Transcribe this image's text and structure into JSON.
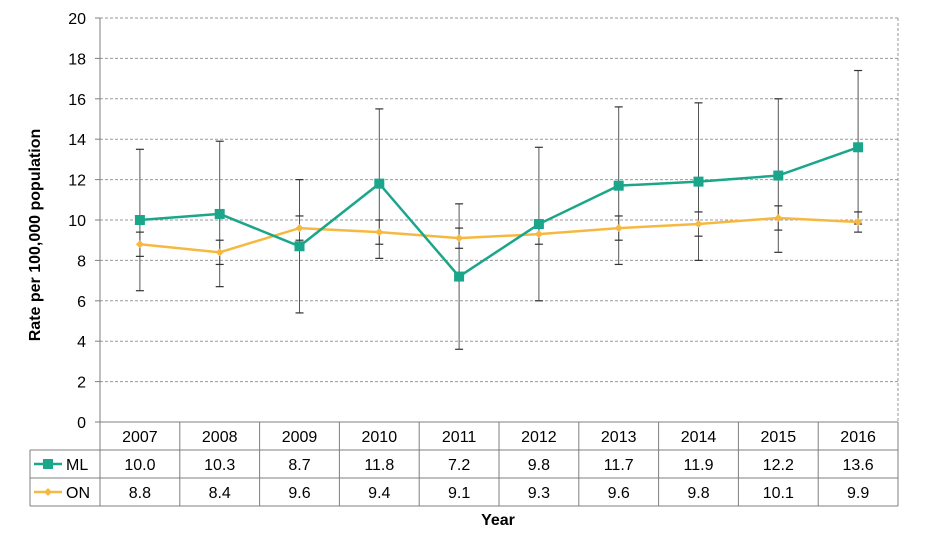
{
  "chart_data": {
    "type": "line",
    "xlabel": "Year",
    "ylabel": "Rate per 100,000 population",
    "ylim": [
      0,
      20
    ],
    "yticks": [
      "0",
      "2",
      "4",
      "6",
      "8",
      "10",
      "12",
      "14",
      "16",
      "18",
      "20"
    ],
    "grid": true,
    "legend": "data-table",
    "categories": [
      "2007",
      "2008",
      "2009",
      "2010",
      "2011",
      "2012",
      "2013",
      "2014",
      "2015",
      "2016"
    ],
    "series": [
      {
        "name": "ML",
        "color": "#1aa68a",
        "marker": "square",
        "values": [
          10.0,
          10.3,
          8.7,
          11.8,
          7.2,
          9.8,
          11.7,
          11.9,
          12.2,
          13.6
        ],
        "labels": [
          "10.0",
          "10.3",
          "8.7",
          "11.8",
          "7.2",
          "9.8",
          "11.7",
          "11.9",
          "12.2",
          "13.6"
        ],
        "ci_low": [
          6.5,
          6.7,
          5.4,
          8.1,
          3.6,
          6.0,
          7.8,
          8.0,
          8.4,
          9.8
        ],
        "ci_high": [
          13.5,
          13.9,
          12.0,
          15.5,
          10.8,
          13.6,
          15.6,
          15.8,
          16.0,
          17.4
        ]
      },
      {
        "name": "ON",
        "color": "#f5b942",
        "marker": "diamond",
        "values": [
          8.8,
          8.4,
          9.6,
          9.4,
          9.1,
          9.3,
          9.6,
          9.8,
          10.1,
          9.9
        ],
        "labels": [
          "8.8",
          "8.4",
          "9.6",
          "9.4",
          "9.1",
          "9.3",
          "9.6",
          "9.8",
          "10.1",
          "9.9"
        ],
        "ci_low": [
          8.2,
          7.8,
          9.0,
          8.8,
          8.6,
          8.8,
          9.0,
          9.2,
          9.5,
          9.4
        ],
        "ci_high": [
          9.4,
          9.0,
          10.2,
          10.0,
          9.6,
          9.8,
          10.2,
          10.4,
          10.7,
          10.4
        ]
      }
    ]
  }
}
